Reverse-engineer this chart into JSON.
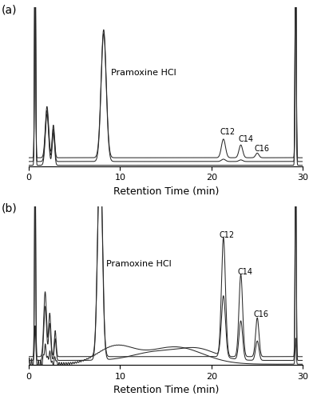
{
  "title_a": "(a)",
  "title_b": "(b)",
  "xlabel": "Retention Time (min)",
  "xlim": [
    0,
    30
  ],
  "label_pramoxine": "Pramoxine HCl",
  "label_C12": "C12",
  "label_C14": "C14",
  "label_C16": "C16",
  "background_color": "#ffffff",
  "line_color": "#2a2a2a",
  "fontsize_label": 9,
  "fontsize_tick": 8,
  "fontsize_panel": 10
}
